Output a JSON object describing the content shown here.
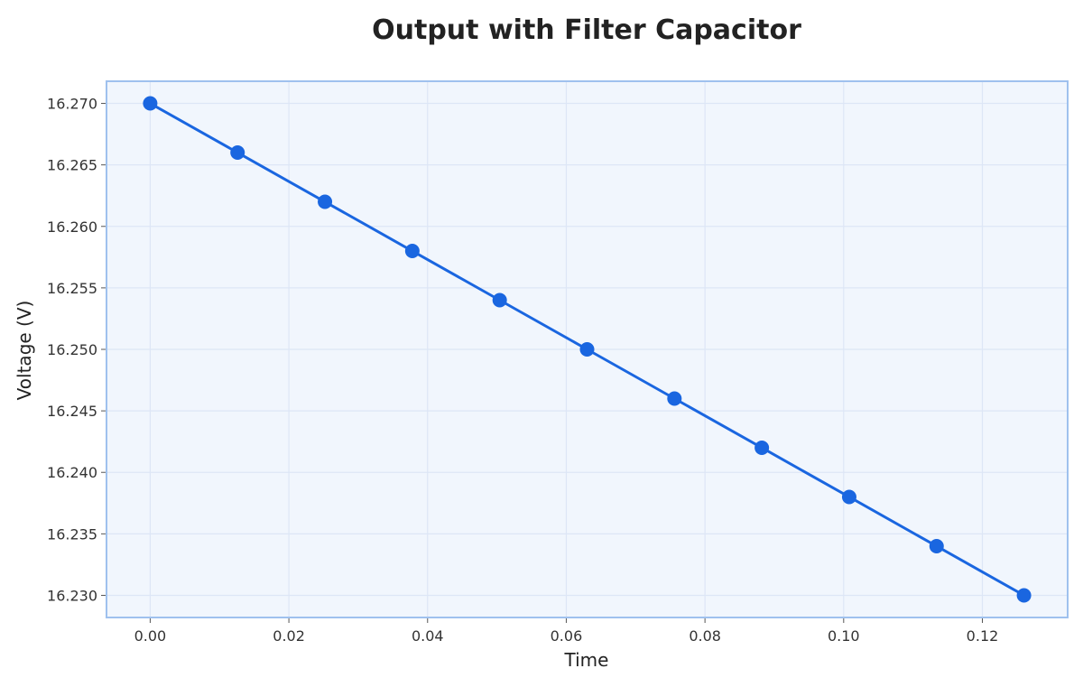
{
  "chart_data": {
    "type": "line",
    "title": "Output with Filter Capacitor",
    "xlabel": "Time",
    "ylabel": "Voltage (V)",
    "xlim": [
      -0.0063,
      0.1323
    ],
    "ylim": [
      16.2282,
      16.2718
    ],
    "xticks": [
      "0.00",
      "0.02",
      "0.04",
      "0.06",
      "0.08",
      "0.10",
      "0.12"
    ],
    "yticks": [
      "16.230",
      "16.235",
      "16.240",
      "16.245",
      "16.250",
      "16.255",
      "16.260",
      "16.265",
      "16.270"
    ],
    "grid": true,
    "legend": "none",
    "series": [
      {
        "x": [
          0.0,
          0.0126,
          0.0252,
          0.0378,
          0.0504,
          0.063,
          0.0756,
          0.0882,
          0.1008,
          0.1134,
          0.126
        ],
        "y": [
          16.27,
          16.266,
          16.262,
          16.258,
          16.254,
          16.25,
          16.246,
          16.242,
          16.238,
          16.234,
          16.23
        ],
        "color": "#1a66e0"
      }
    ],
    "colors": {
      "plot_background": "#f1f6fd",
      "plot_border": "#9fc1ee",
      "grid": "#dde6f6"
    }
  }
}
